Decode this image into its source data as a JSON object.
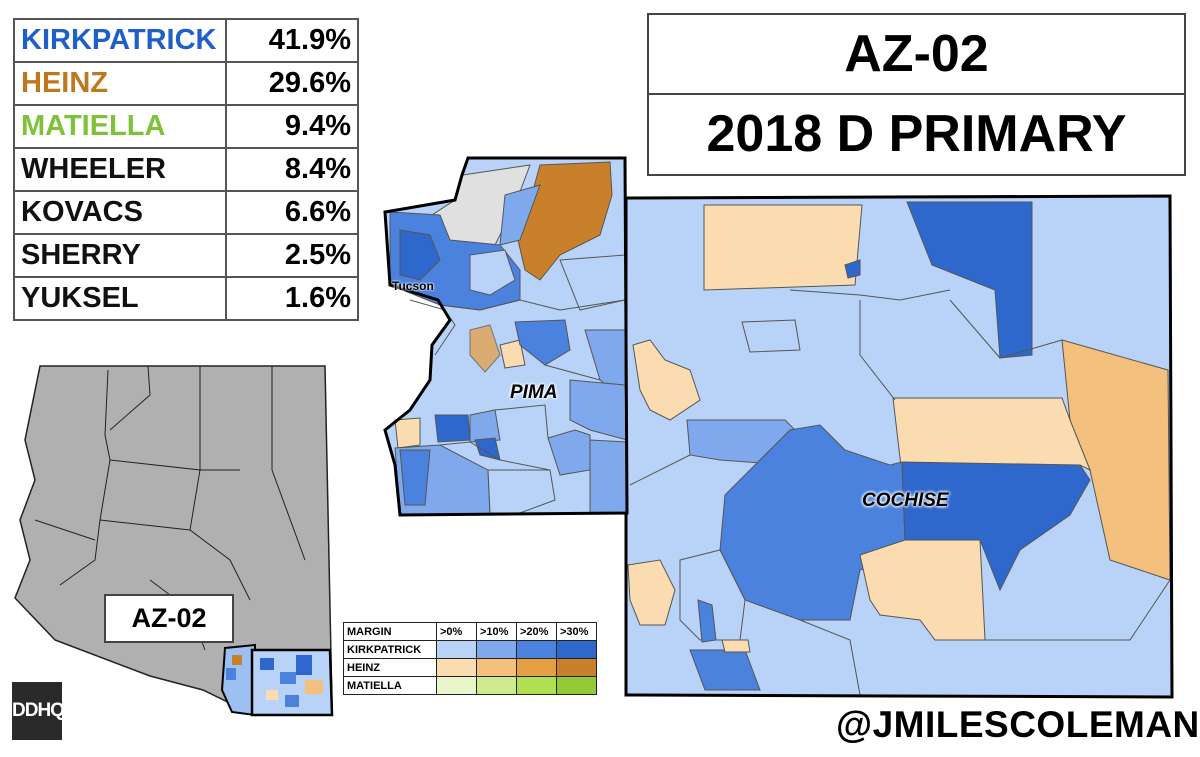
{
  "title": {
    "district": "AZ-02",
    "race": "2018 D PRIMARY"
  },
  "results": [
    {
      "name": "KIRKPATRICK",
      "pct": "41.9%",
      "color": "#1f5fc8"
    },
    {
      "name": "HEINZ",
      "pct": "29.6%",
      "color": "#c0781e"
    },
    {
      "name": "MATIELLA",
      "pct": "9.4%",
      "color": "#7fc23a"
    },
    {
      "name": "WHEELER",
      "pct": "8.4%",
      "color": "#111111"
    },
    {
      "name": "KOVACS",
      "pct": "6.6%",
      "color": "#111111"
    },
    {
      "name": "SHERRY",
      "pct": "2.5%",
      "color": "#111111"
    },
    {
      "name": "YUKSEL",
      "pct": "1.6%",
      "color": "#111111"
    }
  ],
  "labels": {
    "pima": "PIMA",
    "cochise": "COCHISE",
    "tucson": "Tucson",
    "inset": "AZ-02"
  },
  "legend": {
    "header": "MARGIN",
    "bins": [
      ">0%",
      ">10%",
      ">20%",
      ">30%"
    ],
    "rows": [
      {
        "name": "KIRKPATRICK",
        "colors": [
          "#b8d3f7",
          "#7fa9ec",
          "#4a82de",
          "#2f68cc"
        ]
      },
      {
        "name": "HEINZ",
        "colors": [
          "#fbdcb1",
          "#f4c07d",
          "#e79f45",
          "#c8802a"
        ]
      },
      {
        "name": "MATIELLA",
        "colors": [
          "#e9f6c9",
          "#cdeb8e",
          "#b0e052",
          "#93c934"
        ]
      }
    ]
  },
  "logo": "DDHQ",
  "handle": "@JMILESCOLEMAN"
}
